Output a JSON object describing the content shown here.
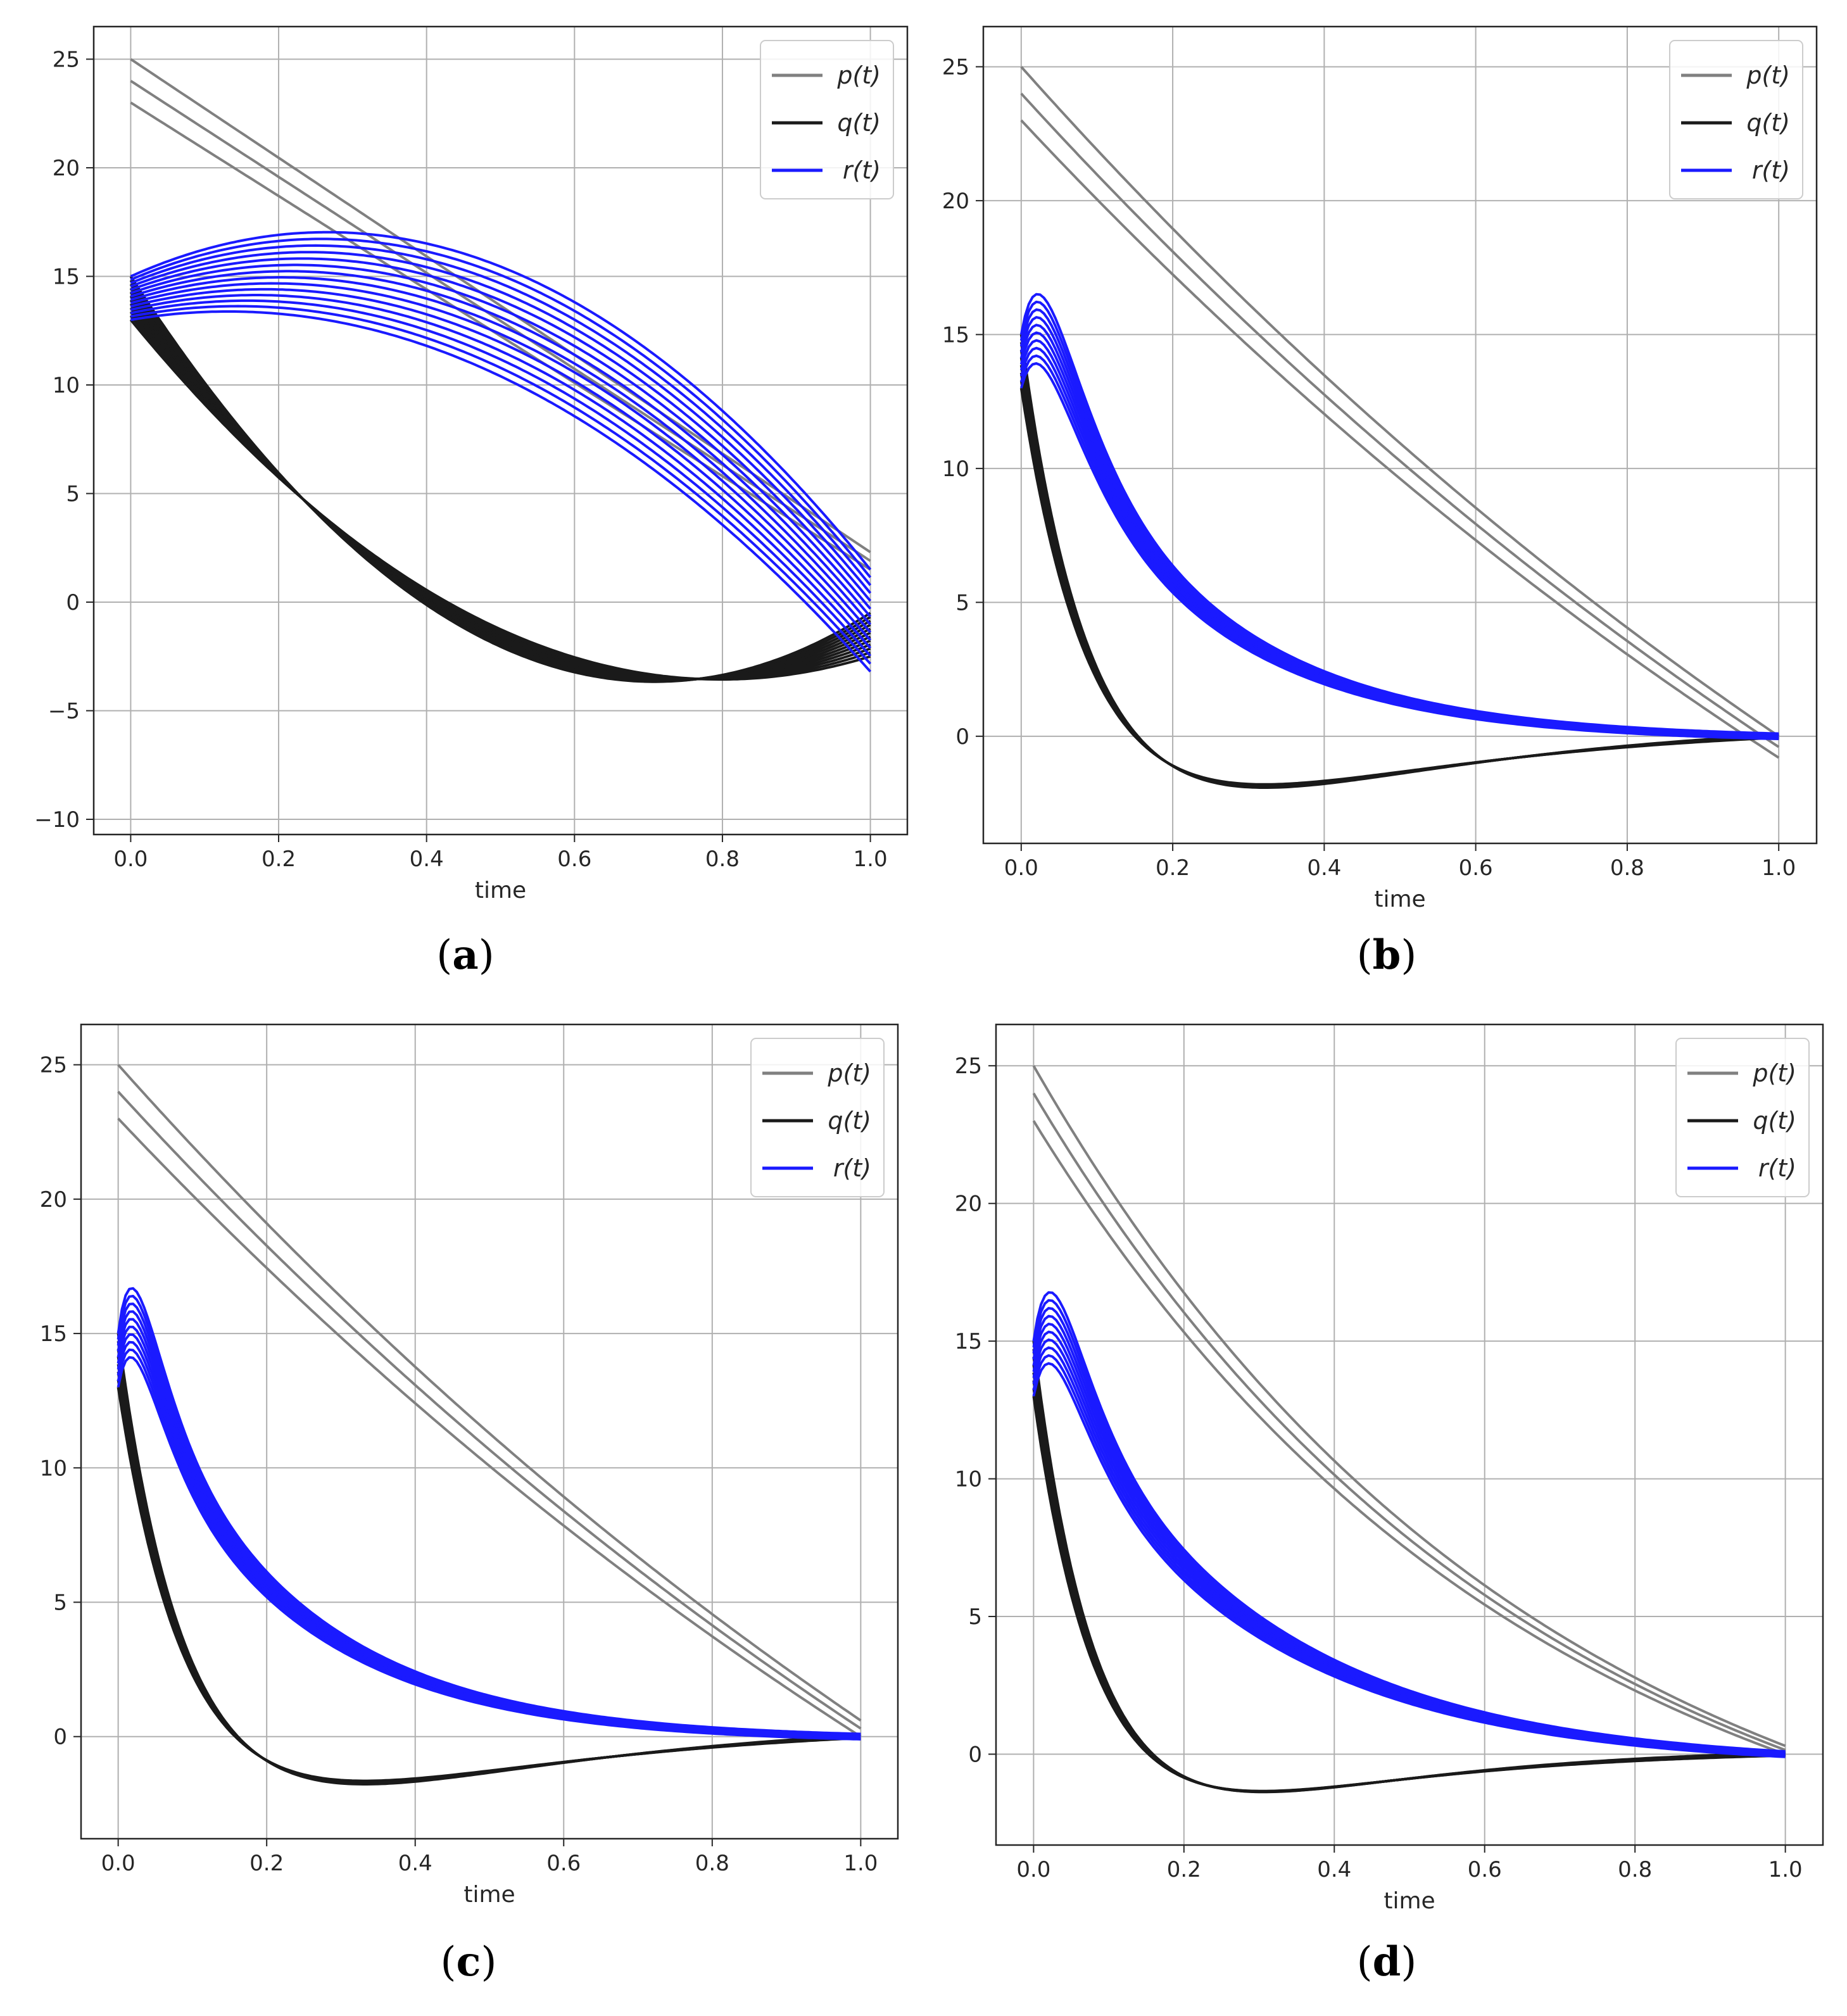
{
  "colors": {
    "p": "#808080",
    "q": "#1a1a1a",
    "r": "#1a1aff",
    "grid": "#b0b0b0",
    "frame": "#262626"
  },
  "chart_data": [
    {
      "id": "a",
      "type": "line",
      "caption": "a",
      "xlabel": "time",
      "ylabel": "",
      "xlim": [
        -0.05,
        1.05
      ],
      "ylim": [
        -10.7,
        26.5
      ],
      "xticks": [
        0.0,
        0.2,
        0.4,
        0.6,
        0.8,
        1.0
      ],
      "xtick_labels": [
        "0.0",
        "0.2",
        "0.4",
        "0.6",
        "0.8",
        "1.0"
      ],
      "yticks": [
        -10,
        -5,
        0,
        5,
        10,
        15,
        20,
        25
      ],
      "ytick_labels": [
        "−10",
        "−5",
        "0",
        "5",
        "10",
        "15",
        "20",
        "25"
      ],
      "grid": true,
      "legend_position": "top-right",
      "legend": [
        {
          "key": "p",
          "label": "p(t)"
        },
        {
          "key": "q",
          "label": "q(t)"
        },
        {
          "key": "r",
          "label": "r(t)"
        }
      ],
      "series": [
        {
          "key": "p",
          "name": "p(t)",
          "count": 3,
          "start": [
            23,
            25
          ],
          "end": [
            1.5,
            2.3
          ],
          "curvature": [
            0,
            0
          ],
          "bulge": [
            0,
            0
          ]
        },
        {
          "key": "q",
          "name": "q(t)",
          "count": 12,
          "start": [
            13,
            15
          ],
          "end": [
            -2.5,
            -0.5
          ],
          "curvature": [
            0,
            0
          ],
          "bulge": [
            -6.5,
            -9.3
          ]
        },
        {
          "key": "r",
          "name": "r(t)",
          "count": 14,
          "start": [
            13,
            15
          ],
          "end": [
            -3.2,
            1.5
          ],
          "curvature": [
            0,
            0
          ],
          "bulge": [
            5.5,
            7.2
          ]
        }
      ]
    },
    {
      "id": "b",
      "type": "line",
      "caption": "b",
      "xlabel": "time",
      "ylabel": "",
      "xlim": [
        -0.05,
        1.05
      ],
      "ylim": [
        -4,
        26.5
      ],
      "xticks": [
        0.0,
        0.2,
        0.4,
        0.6,
        0.8,
        1.0
      ],
      "xtick_labels": [
        "0.0",
        "0.2",
        "0.4",
        "0.6",
        "0.8",
        "1.0"
      ],
      "yticks": [
        0,
        5,
        10,
        15,
        20,
        25
      ],
      "ytick_labels": [
        "0",
        "5",
        "10",
        "15",
        "20",
        "25"
      ],
      "grid": true,
      "legend_position": "top-right",
      "legend": [
        {
          "key": "p",
          "label": "p(t)"
        },
        {
          "key": "q",
          "label": "q(t)"
        },
        {
          "key": "r",
          "label": "r(t)"
        }
      ],
      "series": [
        {
          "key": "p",
          "name": "p(t)",
          "count": 3,
          "start": [
            23,
            25
          ],
          "end": [
            -0.8,
            0.0
          ],
          "curvature": [
            0.5,
            0.5
          ],
          "bulge": [
            0,
            0
          ]
        },
        {
          "key": "q",
          "name": "q(t)",
          "count": 8,
          "start": [
            13,
            15
          ],
          "end": [
            -0.05,
            0.05
          ],
          "curvature": [
            12,
            12
          ],
          "bulge": [
            -2.3,
            -2.6
          ],
          "hump_peak": 0.22,
          "hump_rate": 16
        },
        {
          "key": "r",
          "name": "r(t)",
          "count": 10,
          "start": [
            13,
            15
          ],
          "end": [
            -0.1,
            0.1
          ],
          "curvature": [
            4.5,
            4.5
          ],
          "bulge": [
            2.5,
            3.4
          ],
          "hump_peak": 0.04,
          "hump_rate": 25
        }
      ]
    },
    {
      "id": "c",
      "type": "line",
      "caption": "c",
      "xlabel": "time",
      "ylabel": "",
      "xlim": [
        -0.05,
        1.05
      ],
      "ylim": [
        -3.8,
        26.5
      ],
      "xticks": [
        0.0,
        0.2,
        0.4,
        0.6,
        0.8,
        1.0
      ],
      "xtick_labels": [
        "0.0",
        "0.2",
        "0.4",
        "0.6",
        "0.8",
        "1.0"
      ],
      "yticks": [
        0,
        5,
        10,
        15,
        20,
        25
      ],
      "ytick_labels": [
        "0",
        "5",
        "10",
        "15",
        "20",
        "25"
      ],
      "grid": true,
      "legend_position": "top-right",
      "legend": [
        {
          "key": "p",
          "label": "p(t)"
        },
        {
          "key": "q",
          "label": "q(t)"
        },
        {
          "key": "r",
          "label": "r(t)"
        }
      ],
      "series": [
        {
          "key": "p",
          "name": "p(t)",
          "count": 3,
          "start": [
            23,
            25
          ],
          "end": [
            0.0,
            0.6
          ],
          "curvature": [
            0.5,
            0.5
          ],
          "bulge": [
            0,
            0
          ]
        },
        {
          "key": "q",
          "name": "q(t)",
          "count": 8,
          "start": [
            13,
            15
          ],
          "end": [
            -0.05,
            0.05
          ],
          "curvature": [
            12,
            12
          ],
          "bulge": [
            -2.1,
            -2.4
          ],
          "hump_peak": 0.23,
          "hump_rate": 15
        },
        {
          "key": "r",
          "name": "r(t)",
          "count": 10,
          "start": [
            13,
            15
          ],
          "end": [
            -0.1,
            0.1
          ],
          "curvature": [
            4.5,
            4.5
          ],
          "bulge": [
            2.4,
            3.2
          ],
          "hump_peak": 0.03,
          "hump_rate": 27
        }
      ]
    },
    {
      "id": "d",
      "type": "line",
      "caption": "d",
      "xlabel": "time",
      "ylabel": "",
      "xlim": [
        -0.05,
        1.05
      ],
      "ylim": [
        -3.3,
        26.5
      ],
      "xticks": [
        0.0,
        0.2,
        0.4,
        0.6,
        0.8,
        1.0
      ],
      "xtick_labels": [
        "0.0",
        "0.2",
        "0.4",
        "0.6",
        "0.8",
        "1.0"
      ],
      "yticks": [
        0,
        5,
        10,
        15,
        20,
        25
      ],
      "ytick_labels": [
        "0",
        "5",
        "10",
        "15",
        "20",
        "25"
      ],
      "grid": true,
      "legend_position": "top-right",
      "legend": [
        {
          "key": "p",
          "label": "p(t)"
        },
        {
          "key": "q",
          "label": "q(t)"
        },
        {
          "key": "r",
          "label": "r(t)"
        }
      ],
      "series": [
        {
          "key": "p",
          "name": "p(t)",
          "count": 3,
          "start": [
            23,
            25
          ],
          "end": [
            0.0,
            0.3
          ],
          "curvature": [
            1.5,
            1.5
          ],
          "bulge": [
            0,
            0
          ]
        },
        {
          "key": "q",
          "name": "q(t)",
          "count": 8,
          "start": [
            13,
            15
          ],
          "end": [
            -0.05,
            0.05
          ],
          "curvature": [
            13,
            13
          ],
          "bulge": [
            -1.8,
            -2.0
          ],
          "hump_peak": 0.19,
          "hump_rate": 18
        },
        {
          "key": "r",
          "name": "r(t)",
          "count": 10,
          "start": [
            13,
            15
          ],
          "end": [
            -0.1,
            0.1
          ],
          "curvature": [
            3.5,
            3.5
          ],
          "bulge": [
            2.4,
            3.2
          ],
          "hump_peak": 0.035,
          "hump_rate": 26
        }
      ]
    }
  ]
}
